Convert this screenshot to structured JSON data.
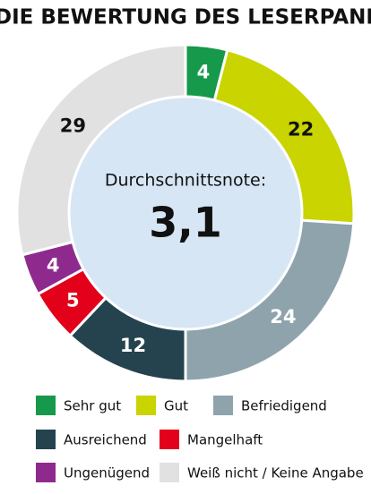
{
  "chart_data": {
    "type": "donut",
    "title": "DIE BEWERTUNG DES LESERPANE",
    "center_text": "Durchschnittsnote:",
    "center_value": "3,1",
    "categories": [
      "Sehr gut",
      "Gut",
      "Befriedigend",
      "Ausreichend",
      "Mangelhaft",
      "Ungenügend",
      "Weiß nicht / Keine Angabe"
    ],
    "values": [
      4,
      22,
      24,
      12,
      5,
      4,
      29
    ],
    "colors": [
      "#17994b",
      "#c9d400",
      "#8fa3ad",
      "#24434f",
      "#e2001a",
      "#8e2a8e",
      "#e1e1e1"
    ],
    "legend": "bottom"
  }
}
